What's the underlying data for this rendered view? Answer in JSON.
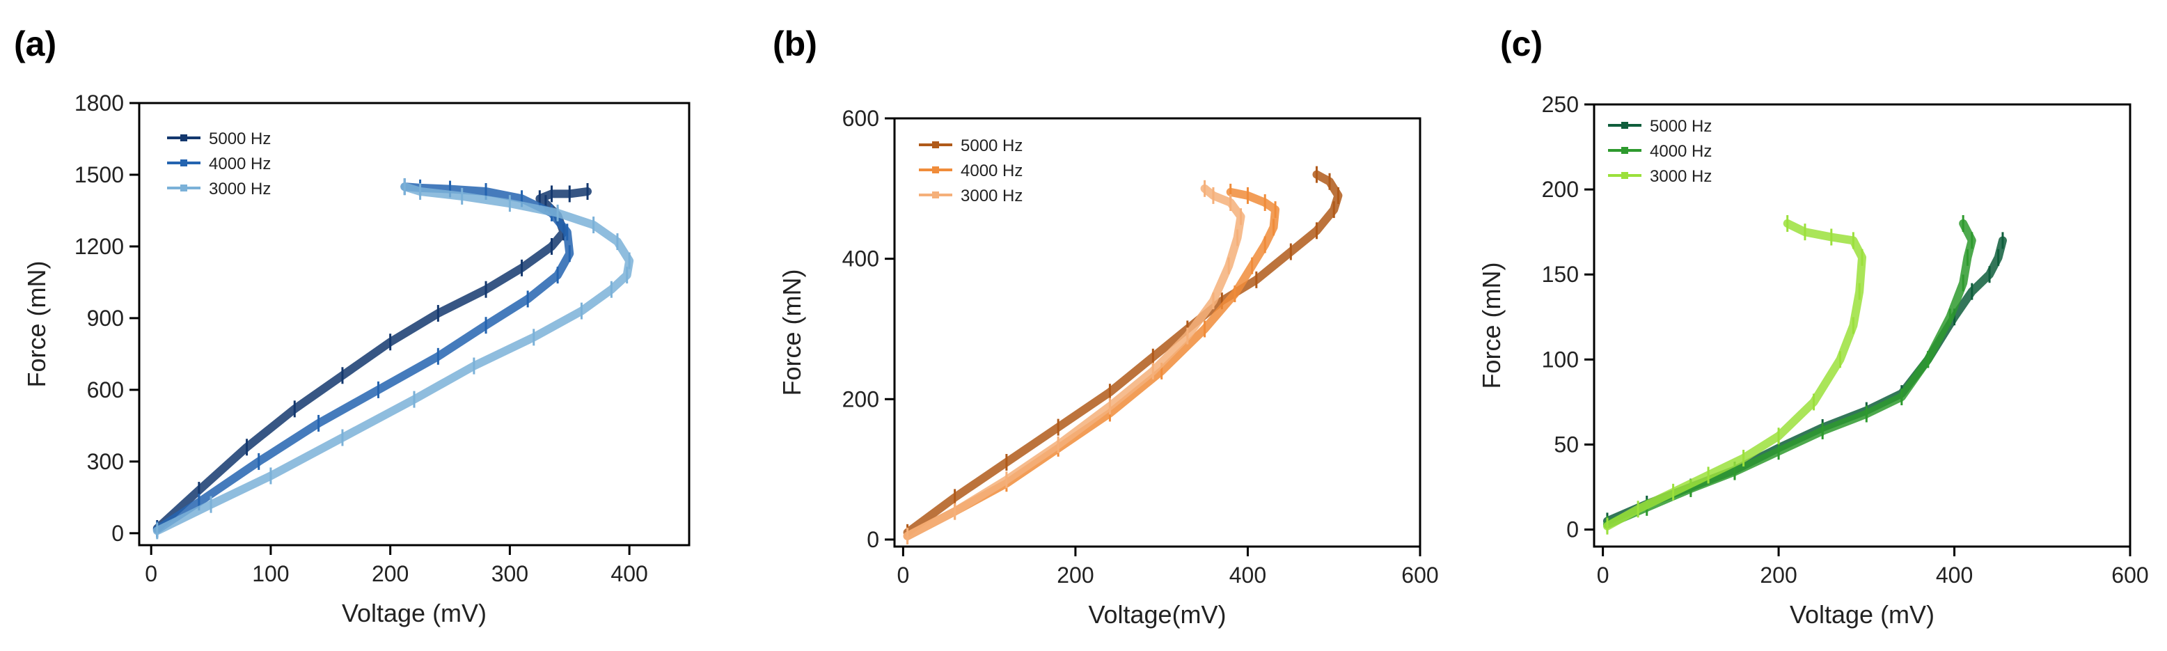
{
  "chart_data": [
    {
      "type": "line",
      "panel_label": "(a)",
      "xlabel": "Voltage (mV)",
      "ylabel": "Force (mN)",
      "xlim": [
        -10,
        450
      ],
      "ylim": [
        -50,
        1800
      ],
      "x_ticks": [
        "0",
        "100",
        "200",
        "300",
        "400"
      ],
      "y_ticks": [
        "0",
        "300",
        "600",
        "900",
        "1200",
        "1500",
        "1800"
      ],
      "legend_position": "top-left",
      "series": [
        {
          "name": "5000 Hz",
          "color": "#14386e",
          "x": [
            5,
            40,
            80,
            120,
            160,
            200,
            240,
            280,
            310,
            335,
            345,
            340,
            330,
            325,
            335,
            350,
            365
          ],
          "y": [
            20,
            180,
            360,
            520,
            660,
            800,
            920,
            1020,
            1110,
            1200,
            1260,
            1330,
            1380,
            1400,
            1420,
            1420,
            1430
          ]
        },
        {
          "name": "4000 Hz",
          "color": "#2464b0",
          "x": [
            5,
            40,
            90,
            140,
            190,
            240,
            280,
            315,
            340,
            350,
            348,
            335,
            310,
            280,
            250,
            225,
            212
          ],
          "y": [
            15,
            130,
            300,
            460,
            600,
            740,
            870,
            980,
            1080,
            1170,
            1260,
            1340,
            1400,
            1430,
            1440,
            1445,
            1450
          ]
        },
        {
          "name": "3000 Hz",
          "color": "#7bb1d8",
          "x": [
            5,
            50,
            100,
            160,
            220,
            270,
            320,
            360,
            385,
            398,
            400,
            390,
            370,
            340,
            300,
            260,
            225,
            212
          ],
          "y": [
            10,
            120,
            240,
            400,
            560,
            700,
            820,
            930,
            1020,
            1080,
            1140,
            1220,
            1290,
            1340,
            1380,
            1410,
            1430,
            1450
          ]
        }
      ]
    },
    {
      "type": "line",
      "panel_label": "(b)",
      "xlabel": "Voltage(mV)",
      "ylabel": "Force (mN)",
      "xlim": [
        -10,
        600
      ],
      "ylim": [
        -10,
        600
      ],
      "x_ticks": [
        "0",
        "200",
        "400",
        "600"
      ],
      "y_ticks": [
        "0",
        "200",
        "400",
        "600"
      ],
      "legend_position": "top-left",
      "series": [
        {
          "name": "5000 Hz",
          "color": "#b05a1a",
          "x": [
            5,
            60,
            120,
            180,
            240,
            290,
            330,
            370,
            410,
            450,
            480,
            500,
            505,
            495,
            480
          ],
          "y": [
            10,
            60,
            110,
            160,
            210,
            260,
            300,
            340,
            370,
            410,
            440,
            470,
            490,
            510,
            520
          ]
        },
        {
          "name": "4000 Hz",
          "color": "#f08c3a",
          "x": [
            5,
            60,
            120,
            180,
            240,
            300,
            350,
            385,
            405,
            420,
            430,
            432,
            420,
            400,
            380
          ],
          "y": [
            5,
            40,
            80,
            130,
            180,
            240,
            300,
            350,
            390,
            420,
            445,
            470,
            480,
            490,
            495
          ]
        },
        {
          "name": "3000 Hz",
          "color": "#f5b07a",
          "x": [
            5,
            60,
            120,
            180,
            240,
            290,
            330,
            360,
            378,
            388,
            392,
            380,
            360,
            350
          ],
          "y": [
            5,
            40,
            85,
            135,
            190,
            240,
            290,
            340,
            390,
            430,
            460,
            480,
            490,
            500
          ]
        }
      ]
    },
    {
      "type": "line",
      "panel_label": "(c)",
      "xlabel": "Voltage (mV)",
      "ylabel": "Force (mN)",
      "xlim": [
        -10,
        600
      ],
      "ylim": [
        -10,
        250
      ],
      "x_ticks": [
        "0",
        "200",
        "400",
        "600"
      ],
      "y_ticks": [
        "0",
        "50",
        "100",
        "150",
        "200",
        "250"
      ],
      "legend_position": "top-left",
      "series": [
        {
          "name": "5000 Hz",
          "color": "#0f5e3c",
          "x": [
            5,
            50,
            100,
            150,
            200,
            250,
            300,
            340,
            370,
            400,
            420,
            440,
            450,
            455
          ],
          "y": [
            5,
            15,
            25,
            35,
            48,
            60,
            70,
            80,
            100,
            125,
            140,
            150,
            160,
            170
          ]
        },
        {
          "name": "4000 Hz",
          "color": "#2e9a2e",
          "x": [
            5,
            50,
            100,
            150,
            200,
            250,
            300,
            340,
            370,
            395,
            410,
            415,
            420,
            410
          ],
          "y": [
            3,
            13,
            24,
            34,
            46,
            58,
            68,
            78,
            100,
            125,
            145,
            160,
            170,
            180
          ]
        },
        {
          "name": "3000 Hz",
          "color": "#9be03c",
          "x": [
            5,
            40,
            80,
            120,
            160,
            200,
            240,
            270,
            285,
            292,
            295,
            285,
            260,
            230,
            210
          ],
          "y": [
            2,
            12,
            22,
            32,
            42,
            55,
            75,
            100,
            120,
            140,
            160,
            170,
            172,
            175,
            180
          ]
        }
      ]
    }
  ]
}
